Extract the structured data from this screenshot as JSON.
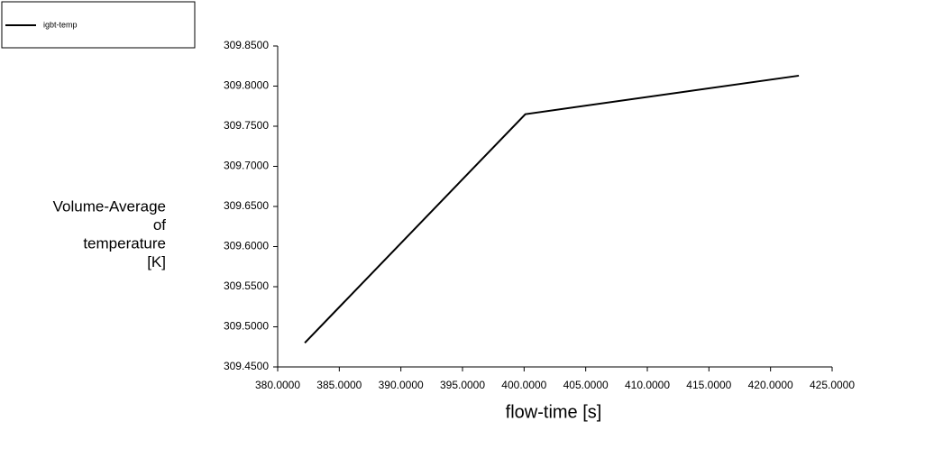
{
  "chart_data": {
    "type": "line",
    "legend_position": "upper left",
    "xlabel": "flow-time [s]",
    "ylabel": [
      "Volume-Average",
      "of",
      "temperature",
      "[K]"
    ],
    "x": [
      382.2,
      400.1,
      422.3
    ],
    "series": [
      {
        "name": "igbt-temp",
        "color": "#000000",
        "values": [
          309.48,
          309.765,
          309.813
        ]
      }
    ],
    "xlim": [
      380,
      425
    ],
    "xticks": [
      {
        "value": 380,
        "label": "380.0000"
      },
      {
        "value": 385,
        "label": "385.0000"
      },
      {
        "value": 390,
        "label": "390.0000"
      },
      {
        "value": 395,
        "label": "395.0000"
      },
      {
        "value": 400,
        "label": "400.0000"
      },
      {
        "value": 405,
        "label": "405.0000"
      },
      {
        "value": 410,
        "label": "410.0000"
      },
      {
        "value": 415,
        "label": "415.0000"
      },
      {
        "value": 420,
        "label": "420.0000"
      },
      {
        "value": 425,
        "label": "425.0000"
      }
    ],
    "ylim": [
      309.45,
      309.85
    ],
    "yticks": [
      {
        "value": 309.45,
        "label": "309.4500"
      },
      {
        "value": 309.5,
        "label": "309.5000"
      },
      {
        "value": 309.55,
        "label": "309.5500"
      },
      {
        "value": 309.6,
        "label": "309.6000"
      },
      {
        "value": 309.65,
        "label": "309.6500"
      },
      {
        "value": 309.7,
        "label": "309.7000"
      },
      {
        "value": 309.75,
        "label": "309.7500"
      },
      {
        "value": 309.8,
        "label": "309.8000"
      },
      {
        "value": 309.85,
        "label": "309.8500"
      }
    ]
  }
}
